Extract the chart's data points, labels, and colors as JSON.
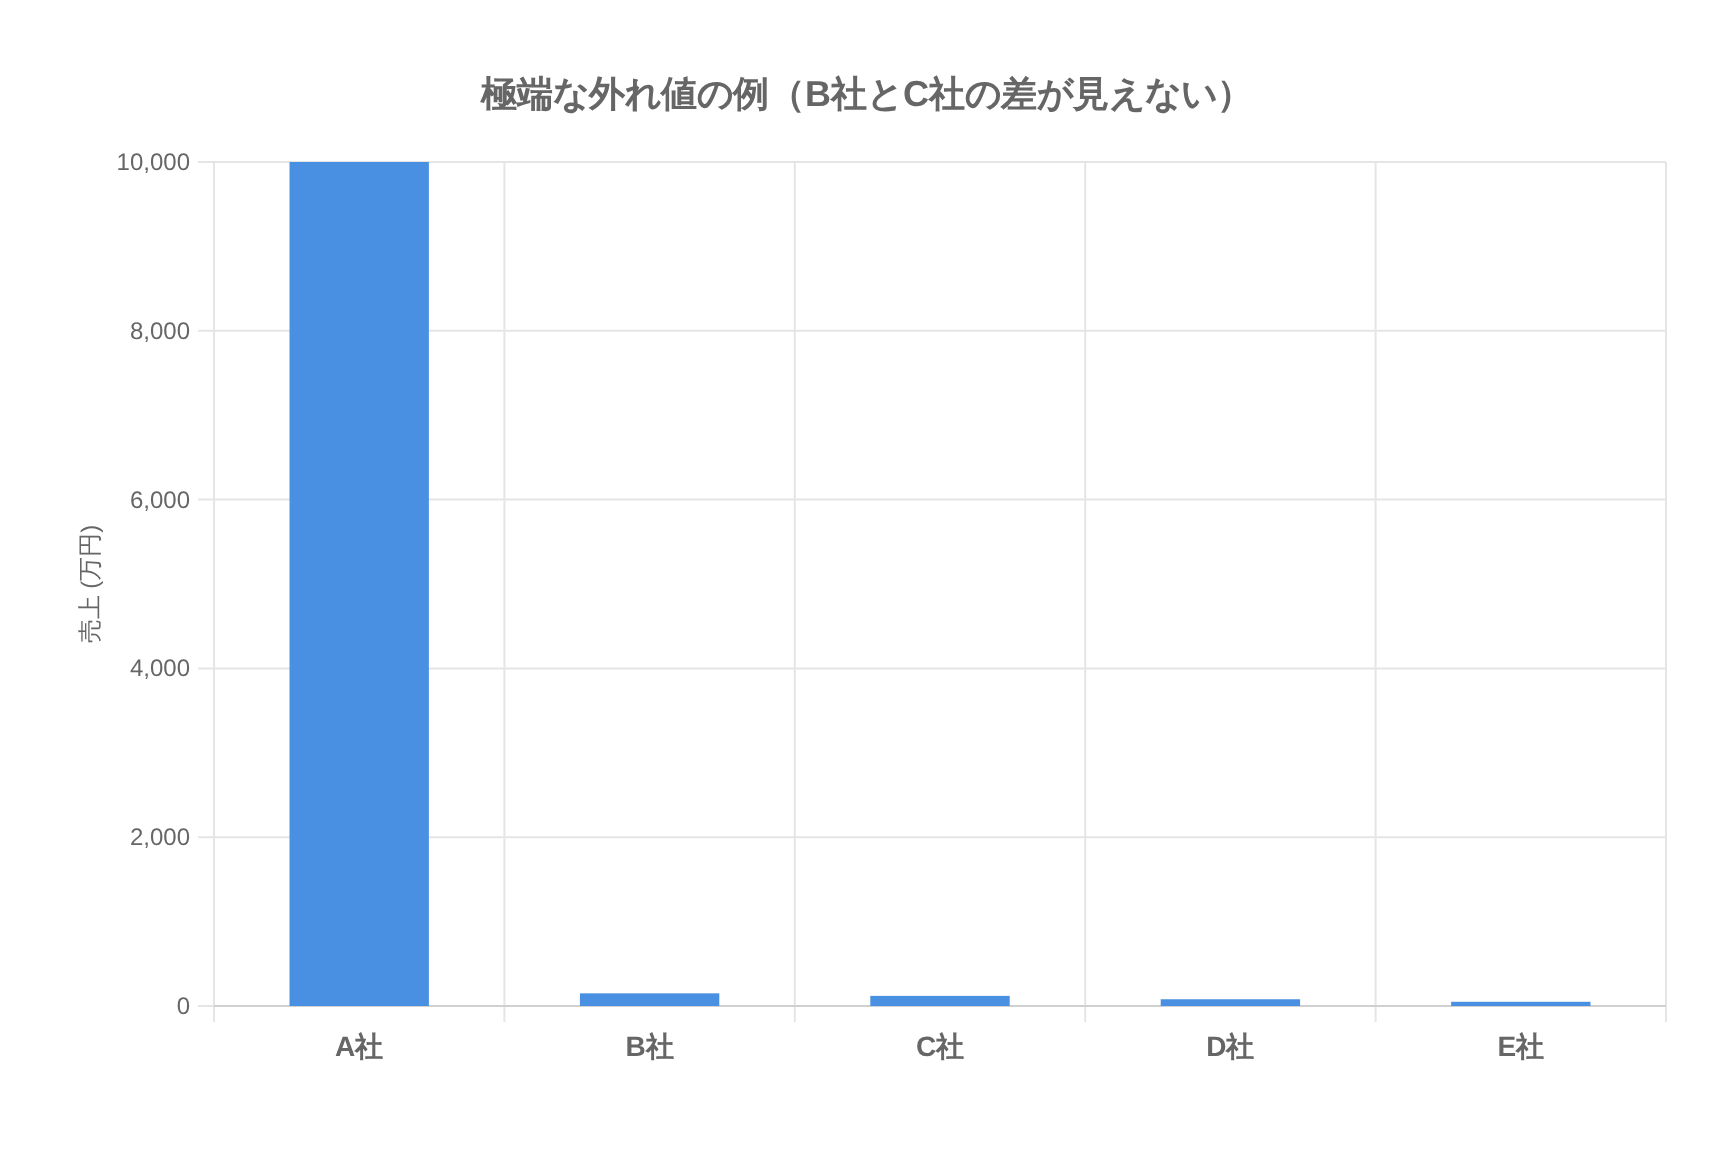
{
  "chart_data": {
    "type": "bar",
    "title": "極端な外れ値の例（B社とC社の差が見えない）",
    "ylabel": "売上 (万円)",
    "categories": [
      "A社",
      "B社",
      "C社",
      "D社",
      "E社"
    ],
    "values": [
      10000,
      150,
      120,
      80,
      50
    ],
    "color": "#4a90e2",
    "ylim": [
      0,
      10000
    ],
    "yticks": [
      {
        "value": 0,
        "label": "0"
      },
      {
        "value": 2000,
        "label": "2,000"
      },
      {
        "value": 4000,
        "label": "4,000"
      },
      {
        "value": 6000,
        "label": "6,000"
      },
      {
        "value": 8000,
        "label": "8,000"
      },
      {
        "value": 10000,
        "label": "10,000"
      }
    ],
    "grid": true
  }
}
